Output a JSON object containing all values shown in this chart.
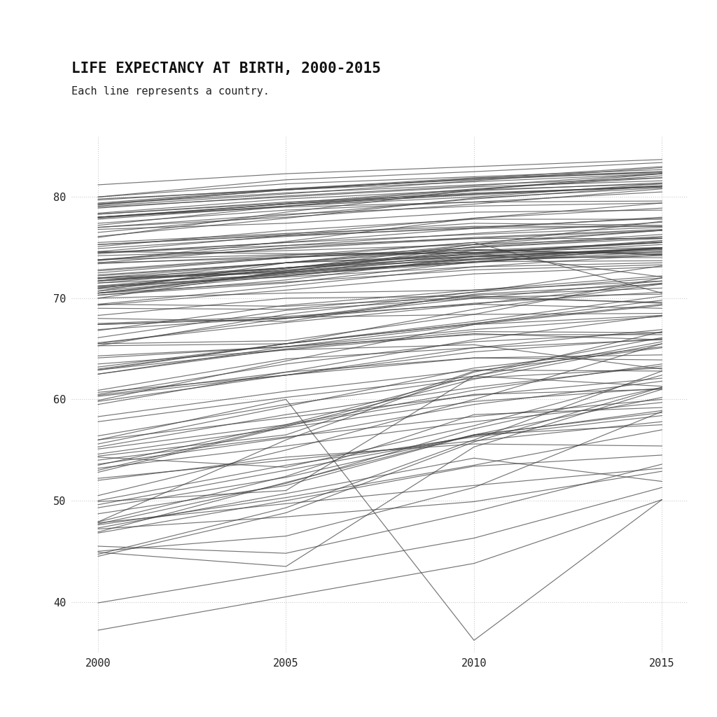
{
  "title": "LIFE EXPECTANCY AT BIRTH, 2000-2015",
  "subtitle": "Each line represents a country.",
  "years": [
    2000,
    2005,
    2010,
    2015
  ],
  "xlim": [
    1999.3,
    2015.7
  ],
  "ylim": [
    35,
    86
  ],
  "yticks": [
    40,
    50,
    60,
    70,
    80
  ],
  "xticks": [
    2000,
    2005,
    2010,
    2015
  ],
  "line_color": "#404040",
  "line_alpha": 0.72,
  "line_width": 0.85,
  "bg_color": "#ffffff",
  "grid_color": "#aaaaaa",
  "font_family": "monospace",
  "title_fontsize": 15,
  "subtitle_fontsize": 11,
  "tick_fontsize": 11,
  "countries": {
    "Afghanistan": [
      55.3,
      58.5,
      61.2,
      63.3
    ],
    "Albania": [
      74.4,
      75.5,
      76.9,
      78.0
    ],
    "Algeria": [
      70.5,
      72.6,
      75.1,
      76.3
    ],
    "Angola": [
      47.7,
      51.7,
      57.1,
      61.2
    ],
    "Argentina": [
      74.5,
      75.2,
      75.9,
      76.7
    ],
    "Armenia": [
      71.2,
      72.8,
      74.2,
      74.9
    ],
    "Australia": [
      79.4,
      80.8,
      81.9,
      82.5
    ],
    "Austria": [
      78.4,
      79.8,
      80.7,
      81.3
    ],
    "Azerbaijan": [
      66.8,
      69.3,
      70.8,
      72.2
    ],
    "Bangladesh": [
      65.3,
      68.4,
      70.6,
      72.0
    ],
    "Belarus": [
      69.0,
      68.9,
      70.6,
      73.2
    ],
    "Belgium": [
      78.0,
      79.3,
      80.2,
      81.1
    ],
    "Benin": [
      54.6,
      57.2,
      59.8,
      61.1
    ],
    "Bolivia": [
      63.2,
      65.5,
      67.7,
      70.2
    ],
    "Bosnia": [
      74.5,
      75.5,
      76.3,
      77.0
    ],
    "Botswana": [
      49.9,
      51.0,
      62.3,
      65.7
    ],
    "Brazil": [
      70.5,
      72.2,
      73.9,
      75.0
    ],
    "Bulgaria": [
      71.7,
      72.7,
      73.9,
      74.7
    ],
    "Burkina Faso": [
      53.2,
      55.4,
      57.8,
      59.7
    ],
    "Burundi": [
      49.3,
      52.3,
      56.5,
      57.5
    ],
    "Cambodia": [
      59.9,
      63.8,
      67.4,
      69.3
    ],
    "Cameroon": [
      52.2,
      54.0,
      55.9,
      57.8
    ],
    "Canada": [
      79.3,
      80.4,
      81.2,
      81.9
    ],
    "CAR": [
      47.2,
      48.4,
      49.9,
      52.9
    ],
    "Chad": [
      47.8,
      49.7,
      51.5,
      53.2
    ],
    "Chile": [
      77.4,
      78.7,
      79.5,
      80.5
    ],
    "China": [
      71.7,
      73.5,
      75.0,
      76.1
    ],
    "Colombia": [
      72.0,
      73.0,
      73.8,
      74.2
    ],
    "Congo DR": [
      48.7,
      51.5,
      56.5,
      58.7
    ],
    "Congo Rep": [
      55.1,
      57.5,
      60.9,
      63.5
    ],
    "Costa Rica": [
      78.0,
      79.0,
      79.5,
      79.6
    ],
    "Croatia": [
      74.9,
      76.1,
      77.0,
      77.9
    ],
    "Cuba": [
      77.0,
      78.3,
      79.1,
      79.4
    ],
    "Czech Rep": [
      75.3,
      76.3,
      77.9,
      78.9
    ],
    "Denmark": [
      77.0,
      78.0,
      79.3,
      80.8
    ],
    "Djibouti": [
      56.0,
      58.2,
      60.4,
      62.1
    ],
    "Dominican Rep": [
      70.7,
      72.4,
      73.6,
      73.7
    ],
    "Ecuador": [
      73.5,
      75.0,
      76.0,
      76.8
    ],
    "Egypt": [
      70.0,
      70.5,
      70.8,
      71.7
    ],
    "El Salvador": [
      70.5,
      71.6,
      72.8,
      73.3
    ],
    "Eritrea": [
      55.6,
      59.3,
      63.1,
      65.2
    ],
    "Estonia": [
      71.0,
      72.9,
      75.3,
      77.6
    ],
    "Ethiopia": [
      52.8,
      57.3,
      62.0,
      65.5
    ],
    "Finland": [
      77.8,
      79.1,
      80.0,
      81.3
    ],
    "France": [
      79.2,
      80.7,
      81.8,
      82.4
    ],
    "Gabon": [
      60.3,
      62.4,
      64.7,
      66.0
    ],
    "Gambia": [
      57.8,
      60.2,
      62.3,
      61.3
    ],
    "Georgia": [
      71.5,
      72.3,
      73.5,
      75.0
    ],
    "Germany": [
      78.0,
      79.1,
      80.3,
      81.0
    ],
    "Ghana": [
      58.3,
      60.8,
      62.9,
      62.8
    ],
    "Greece": [
      78.3,
      79.5,
      80.3,
      81.1
    ],
    "Guatemala": [
      69.3,
      70.8,
      72.4,
      73.1
    ],
    "Guinea": [
      49.6,
      53.0,
      56.4,
      58.9
    ],
    "Guinea-Bissau": [
      47.6,
      50.3,
      53.5,
      57.0
    ],
    "Haiti": [
      56.4,
      59.5,
      62.1,
      63.1
    ],
    "Honduras": [
      71.7,
      73.0,
      74.1,
      74.8
    ],
    "Hungary": [
      71.7,
      73.0,
      74.4,
      75.7
    ],
    "India": [
      62.5,
      65.2,
      67.4,
      68.3
    ],
    "Indonesia": [
      65.6,
      67.6,
      69.4,
      69.0
    ],
    "Iran": [
      70.5,
      72.5,
      74.4,
      75.5
    ],
    "Iraq": [
      68.3,
      70.0,
      70.2,
      69.5
    ],
    "Ireland": [
      77.2,
      79.1,
      80.6,
      81.4
    ],
    "Israel": [
      79.7,
      80.8,
      81.7,
      82.5
    ],
    "Italy": [
      80.0,
      81.3,
      82.0,
      82.7
    ],
    "Ivory Coast": [
      47.3,
      50.7,
      54.2,
      51.9
    ],
    "Jamaica": [
      71.5,
      73.0,
      74.5,
      75.5
    ],
    "Japan": [
      81.2,
      82.3,
      83.0,
      83.7
    ],
    "Jordan": [
      72.0,
      73.5,
      74.8,
      74.3
    ],
    "Kazakhstan": [
      65.5,
      65.8,
      68.4,
      72.0
    ],
    "Kenya": [
      53.5,
      57.5,
      62.3,
      66.7
    ],
    "Korea DPR": [
      65.5,
      68.0,
      70.0,
      71.7
    ],
    "Korea Rep": [
      76.0,
      78.5,
      80.7,
      82.1
    ],
    "Kuwait": [
      74.6,
      74.4,
      74.5,
      74.5
    ],
    "Kyrgyzstan": [
      67.4,
      68.0,
      69.5,
      70.6
    ],
    "Laos": [
      62.5,
      65.0,
      66.7,
      66.6
    ],
    "Latvia": [
      70.3,
      71.5,
      73.6,
      74.6
    ],
    "Lebanon": [
      73.7,
      75.6,
      77.9,
      79.4
    ],
    "Lesotho": [
      45.5,
      44.8,
      48.9,
      53.6
    ],
    "Liberia": [
      53.0,
      57.4,
      60.5,
      61.0
    ],
    "Libya": [
      72.8,
      74.1,
      74.5,
      72.1
    ],
    "Lithuania": [
      71.9,
      72.5,
      73.6,
      74.9
    ],
    "Luxembourg": [
      78.0,
      79.3,
      80.7,
      82.3
    ],
    "Macedonia": [
      73.8,
      74.3,
      74.5,
      75.6
    ],
    "Madagascar": [
      60.9,
      64.0,
      65.1,
      65.9
    ],
    "Malawi": [
      44.7,
      49.3,
      56.0,
      62.8
    ],
    "Malaysia": [
      72.3,
      73.5,
      74.3,
      75.3
    ],
    "Mali": [
      50.0,
      53.5,
      56.3,
      58.4
    ],
    "Mauritania": [
      60.4,
      62.7,
      64.1,
      63.9
    ],
    "Mauritius": [
      72.0,
      72.6,
      73.6,
      74.4
    ],
    "Mexico": [
      74.2,
      74.7,
      75.3,
      76.7
    ],
    "Moldova": [
      67.5,
      68.2,
      69.4,
      71.5
    ],
    "Mongolia": [
      62.9,
      65.5,
      67.5,
      69.8
    ],
    "Morocco": [
      69.4,
      71.2,
      73.1,
      74.3
    ],
    "Mozambique": [
      46.9,
      51.8,
      56.5,
      60.2
    ],
    "Myanmar": [
      60.5,
      63.5,
      65.7,
      66.6
    ],
    "Namibia": [
      54.4,
      56.5,
      62.8,
      65.1
    ],
    "Nepal": [
      66.1,
      68.8,
      70.0,
      69.6
    ],
    "Netherlands": [
      78.3,
      79.4,
      80.8,
      81.9
    ],
    "New Zealand": [
      79.0,
      80.0,
      81.0,
      81.6
    ],
    "Nicaragua": [
      71.0,
      73.0,
      74.7,
      75.0
    ],
    "Niger": [
      53.6,
      56.2,
      59.5,
      61.8
    ],
    "Nigeria": [
      46.8,
      50.0,
      53.4,
      54.5
    ],
    "Norway": [
      78.9,
      80.1,
      81.1,
      82.3
    ],
    "Oman": [
      74.6,
      76.2,
      77.4,
      77.2
    ],
    "Pakistan": [
      64.3,
      65.2,
      66.4,
      66.4
    ],
    "Panama": [
      75.1,
      76.7,
      77.8,
      77.8
    ],
    "Papua NG": [
      63.5,
      64.9,
      65.4,
      63.0
    ],
    "Paraguay": [
      71.1,
      72.1,
      73.1,
      73.5
    ],
    "Peru": [
      70.0,
      72.7,
      74.7,
      75.5
    ],
    "Philippines": [
      66.9,
      68.1,
      68.4,
      68.5
    ],
    "Poland": [
      73.8,
      75.2,
      76.4,
      77.5
    ],
    "Portugal": [
      76.5,
      78.2,
      79.8,
      81.1
    ],
    "Romania": [
      71.2,
      72.2,
      73.8,
      75.0
    ],
    "Russia": [
      65.3,
      65.5,
      68.9,
      71.4
    ],
    "Rwanda": [
      47.9,
      56.0,
      62.7,
      66.1
    ],
    "Saudi Arabia": [
      72.7,
      74.0,
      74.8,
      74.3
    ],
    "Senegal": [
      59.8,
      62.4,
      65.1,
      66.9
    ],
    "Sierra Leone": [
      39.9,
      43.0,
      46.3,
      51.3
    ],
    "Singapore": [
      79.1,
      80.3,
      81.6,
      82.9
    ],
    "Slovakia": [
      73.4,
      74.2,
      75.5,
      76.7
    ],
    "Slovenia": [
      76.1,
      77.9,
      79.9,
      80.9
    ],
    "Somalia": [
      52.0,
      54.3,
      55.6,
      55.4
    ],
    "South Africa": [
      54.3,
      53.3,
      57.4,
      62.4
    ],
    "Spain": [
      79.3,
      80.7,
      81.8,
      83.0
    ],
    "Sri Lanka": [
      70.3,
      71.8,
      74.1,
      75.0
    ],
    "Sudan": [
      60.7,
      62.4,
      64.1,
      64.4
    ],
    "Sweden": [
      79.8,
      80.7,
      81.5,
      82.3
    ],
    "Switzerland": [
      80.0,
      81.7,
      82.5,
      83.4
    ],
    "Syria": [
      72.5,
      74.0,
      75.5,
      70.5
    ],
    "Tajikistan": [
      63.0,
      65.5,
      67.5,
      69.4
    ],
    "Tanzania": [
      50.5,
      55.0,
      60.0,
      65.5
    ],
    "Thailand": [
      70.9,
      72.5,
      74.1,
      74.9
    ],
    "Timor-Leste": [
      59.5,
      62.7,
      65.9,
      68.3
    ],
    "Togo": [
      54.0,
      56.3,
      58.3,
      60.0
    ],
    "Trinidad Tobago": [
      69.4,
      69.2,
      70.1,
      70.4
    ],
    "Tunisia": [
      73.8,
      74.9,
      75.9,
      75.9
    ],
    "Turkey": [
      70.7,
      73.5,
      75.3,
      76.0
    ],
    "Turkmenistan": [
      64.1,
      65.2,
      66.9,
      68.2
    ],
    "Uganda": [
      47.9,
      52.4,
      58.5,
      59.2
    ],
    "Ukraine": [
      68.0,
      67.7,
      70.4,
      71.4
    ],
    "UAE": [
      75.5,
      76.4,
      77.1,
      77.1
    ],
    "United Kingdom": [
      77.9,
      79.3,
      80.4,
      81.0
    ],
    "United States": [
      76.8,
      77.4,
      78.5,
      78.7
    ],
    "Uruguay": [
      75.3,
      76.2,
      76.9,
      77.1
    ],
    "Uzbekistan": [
      67.4,
      68.0,
      70.3,
      71.0
    ],
    "Venezuela": [
      72.2,
      73.5,
      74.1,
      74.0
    ],
    "Vietnam": [
      73.5,
      74.0,
      75.0,
      75.9
    ],
    "Yemen": [
      62.9,
      64.9,
      66.5,
      65.9
    ],
    "Zambia": [
      44.5,
      48.8,
      55.8,
      61.2
    ],
    "Zimbabwe": [
      44.9,
      43.5,
      55.3,
      61.0
    ],
    "Swaziland": [
      45.0,
      46.5,
      51.3,
      58.8
    ],
    "Haiti_earthquake": [
      56.0,
      60.0,
      36.2,
      50.1
    ],
    "Sierra_Leone_low": [
      37.2,
      40.5,
      43.8,
      50.1
    ]
  }
}
